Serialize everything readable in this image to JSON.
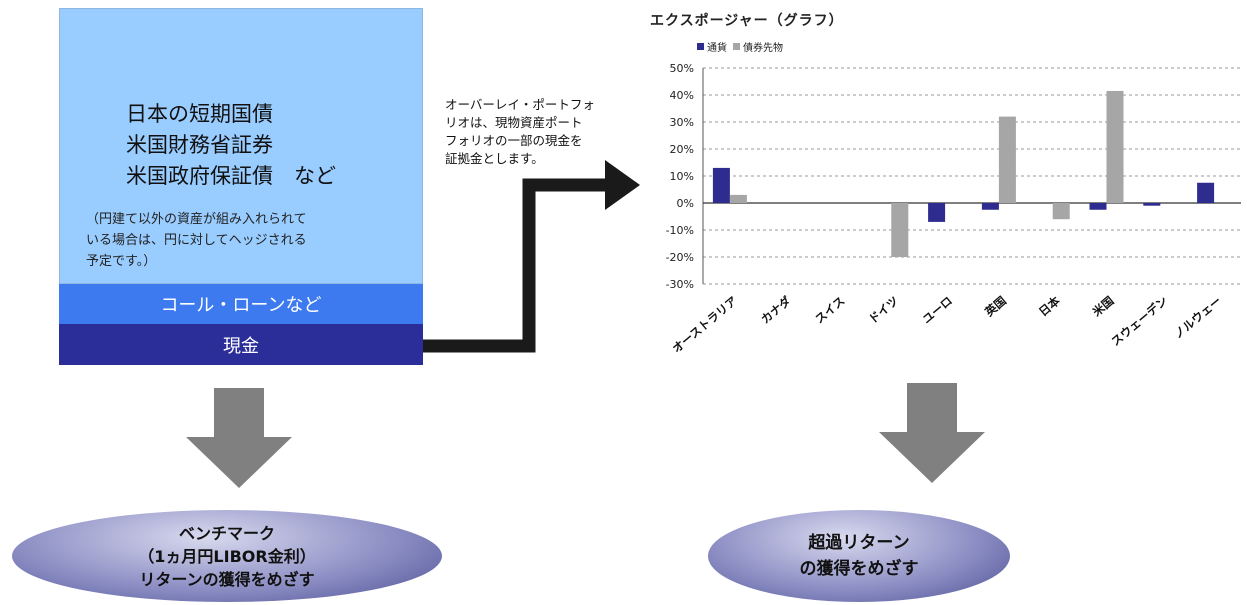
{
  "portfolio": {
    "bills_lines": [
      "日本の短期国債",
      "米国財務省証券",
      "米国政府保証債　など"
    ],
    "note_lines": [
      "（円建て以外の資産が組み入れられて",
      "いる場合は、円に対してヘッジされる",
      "予定です。）"
    ],
    "call_loan_label": "コール・ローンなど",
    "cash_label": "現金"
  },
  "overlay_caption_lines": [
    "オーバーレイ・ポートフォ",
    "リオは、現物資産ポート",
    "フォリオの一部の現金を",
    "証拠金とします。"
  ],
  "benchmark": {
    "lines": [
      "ベンチマーク",
      "（1ヵ月円LIBOR金利）",
      "リターンの獲得をめざす"
    ]
  },
  "excess_return": {
    "lines": [
      "超過リターン",
      "の獲得をめざす"
    ]
  },
  "colors": {
    "currency": "#2e2c8e",
    "bond_futures": "#a6a6a6",
    "call_loan": "#3d7af0",
    "cash": "#2b2e99",
    "bills": "#99ccff"
  },
  "chart_data": {
    "type": "bar",
    "title": "エクスポージャー（グラフ）",
    "categories": [
      "オーストラリア",
      "カナダ",
      "スイス",
      "ドイツ",
      "ユーロ",
      "英国",
      "日本",
      "米国",
      "スウェーデン",
      "ノルウェー"
    ],
    "series": [
      {
        "name": "通貨",
        "values": [
          13,
          0,
          0,
          0,
          -7,
          -2.5,
          0,
          -2.5,
          -1,
          7.5
        ]
      },
      {
        "name": "債券先物",
        "values": [
          3,
          0,
          0,
          -20,
          0,
          32,
          -6,
          41.5,
          0,
          0
        ]
      }
    ],
    "ylim": [
      -30,
      50
    ],
    "yticks": [
      "-30%",
      "-20%",
      "-10%",
      "0%",
      "10%",
      "20%",
      "30%",
      "40%",
      "50%"
    ],
    "grid": true,
    "legend": "top-left"
  }
}
